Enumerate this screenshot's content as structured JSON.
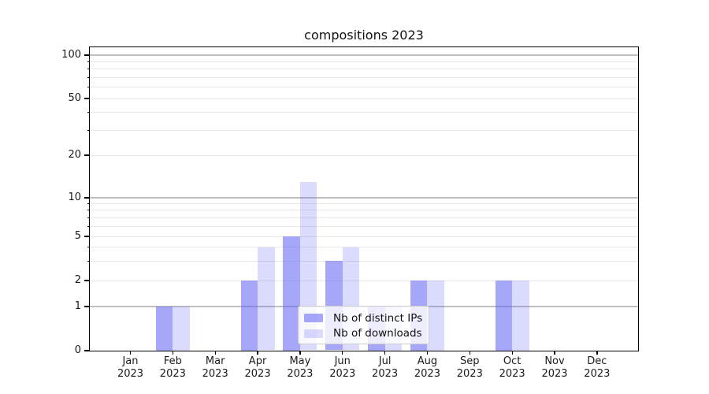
{
  "figure": {
    "title": "compositions 2023",
    "background": "#ffffff"
  },
  "chart_data": {
    "type": "bar",
    "title": "compositions 2023",
    "categories": [
      "Jan",
      "Feb",
      "Mar",
      "Apr",
      "May",
      "Jun",
      "Jul",
      "Aug",
      "Sep",
      "Oct",
      "Nov",
      "Dec"
    ],
    "category_year": "2023",
    "series": [
      {
        "name": "Nb of distinct IPs",
        "color": "rgba(100,100,245,0.57)",
        "values": [
          0,
          1,
          0,
          2,
          5,
          3,
          1,
          2,
          0,
          2,
          0,
          0
        ]
      },
      {
        "name": "Nb of downloads",
        "color": "rgba(100,100,245,0.23)",
        "values": [
          0,
          1,
          0,
          4,
          13,
          4,
          1,
          2,
          0,
          2,
          0,
          0
        ]
      }
    ],
    "y_axis": {
      "scale": "log-like (0,1 linear then logarithmic)",
      "tick_labels": [
        "0",
        "1",
        "2",
        "5",
        "10",
        "20",
        "50",
        "100"
      ],
      "tick_values": [
        0,
        1,
        2,
        5,
        10,
        20,
        50,
        100
      ],
      "major_gridlines": [
        1,
        10,
        100
      ],
      "minor_gridlines": [
        2,
        3,
        4,
        5,
        6,
        7,
        8,
        9,
        20,
        30,
        40,
        50,
        60,
        70,
        80,
        90
      ]
    },
    "xlabel": "",
    "ylabel": "",
    "grid": true,
    "legend": {
      "position": "lower-center",
      "entries": [
        "Nb of distinct IPs",
        "Nb of downloads"
      ]
    }
  },
  "colors": {
    "bar_distinct_ips": "rgba(100,100,245,0.57)",
    "bar_downloads": "rgba(100,100,245,0.23)",
    "grid_major": "#bfbfbf",
    "grid_minor": "#e8e8e8",
    "axis": "#000000",
    "text": "#1a1a1a",
    "legend_border": "#cccccc",
    "legend_background": "rgba(255,255,255,0.8)"
  }
}
